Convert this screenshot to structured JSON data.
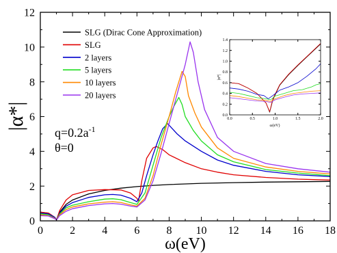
{
  "chart_data": [
    {
      "type": "line",
      "xlabel": "ω(eV)",
      "ylabel": "|α*|",
      "xlim": [
        0,
        18
      ],
      "ylim": [
        0,
        12
      ],
      "xticks": [
        0,
        2,
        4,
        6,
        8,
        10,
        12,
        14,
        16,
        18
      ],
      "yticks": [
        0,
        2,
        4,
        6,
        8,
        10,
        12
      ],
      "legend_position": "top-left",
      "annotations": [
        "q=0.2a",
        "-1",
        "θ=0"
      ],
      "series": [
        {
          "name": "SLG (Dirac Cone Approximation)",
          "color": "#000000",
          "x": [
            0,
            0.5,
            0.9,
            1.0,
            1.2,
            1.6,
            2,
            3,
            4,
            5,
            6,
            7,
            8,
            10,
            12,
            14,
            16,
            18
          ],
          "y": [
            0.5,
            0.45,
            0.2,
            0.05,
            0.5,
            0.95,
            1.2,
            1.55,
            1.75,
            1.88,
            1.97,
            2.04,
            2.09,
            2.16,
            2.2,
            2.23,
            2.25,
            2.27
          ]
        },
        {
          "name": "SLG",
          "color": "#e00000",
          "x": [
            0,
            0.5,
            0.9,
            1.0,
            1.2,
            1.6,
            2,
            3,
            4,
            5,
            5.6,
            6.0,
            6.1,
            6.3,
            6.6,
            7.0,
            7.2,
            7.6,
            8,
            9,
            10,
            11,
            12,
            14,
            16,
            18
          ],
          "y": [
            0.5,
            0.45,
            0.2,
            0.05,
            0.6,
            1.2,
            1.5,
            1.75,
            1.8,
            1.78,
            1.6,
            1.3,
            1.15,
            2.3,
            3.6,
            4.2,
            4.28,
            4.1,
            3.8,
            3.35,
            3.0,
            2.8,
            2.65,
            2.5,
            2.4,
            2.35
          ]
        },
        {
          "name": "2 layers",
          "color": "#0000cc",
          "x": [
            0,
            0.5,
            0.9,
            1.0,
            1.2,
            1.6,
            2,
            3,
            4,
            4.5,
            5,
            5.6,
            6.0,
            6.3,
            6.6,
            7.0,
            7.3,
            7.6,
            7.9,
            8.2,
            8.5,
            9,
            10,
            11,
            12,
            14,
            16,
            18
          ],
          "y": [
            0.45,
            0.4,
            0.2,
            0.05,
            0.45,
            0.85,
            1.05,
            1.35,
            1.5,
            1.52,
            1.48,
            1.3,
            1.1,
            1.6,
            2.6,
            3.8,
            4.6,
            5.3,
            5.6,
            5.3,
            5.0,
            4.6,
            4.0,
            3.5,
            3.2,
            2.85,
            2.65,
            2.55
          ]
        },
        {
          "name": "5 layers",
          "color": "#22dd22",
          "x": [
            0,
            0.5,
            0.9,
            1.0,
            1.2,
            1.6,
            2,
            3,
            4,
            4.5,
            5,
            5.6,
            6.0,
            6.5,
            7.0,
            7.5,
            8.0,
            8.3,
            8.6,
            8.8,
            9.0,
            9.5,
            10,
            11,
            12,
            14,
            16,
            18
          ],
          "y": [
            0.4,
            0.35,
            0.15,
            0.05,
            0.4,
            0.75,
            0.9,
            1.1,
            1.25,
            1.27,
            1.22,
            1.05,
            0.95,
            1.6,
            3.2,
            4.8,
            6.0,
            6.6,
            7.1,
            6.7,
            6.0,
            5.2,
            4.6,
            3.8,
            3.4,
            2.95,
            2.75,
            2.6
          ]
        },
        {
          "name": "10 layers",
          "color": "#ff8800",
          "x": [
            0,
            0.5,
            0.9,
            1.0,
            1.2,
            1.6,
            2,
            3,
            4,
            4.5,
            5,
            5.6,
            6.0,
            6.5,
            7.0,
            7.5,
            8.0,
            8.4,
            8.8,
            9.0,
            9.2,
            9.6,
            10,
            11,
            12,
            14,
            16,
            18
          ],
          "y": [
            0.35,
            0.3,
            0.15,
            0.05,
            0.35,
            0.65,
            0.8,
            0.98,
            1.08,
            1.1,
            1.06,
            0.92,
            0.85,
            1.3,
            2.6,
            4.4,
            6.0,
            7.4,
            8.6,
            8.3,
            7.2,
            6.2,
            5.4,
            4.2,
            3.6,
            3.1,
            2.85,
            2.7
          ]
        },
        {
          "name": "20 layers",
          "color": "#9933ee",
          "x": [
            0,
            0.5,
            0.9,
            1.0,
            1.2,
            1.6,
            2,
            3,
            4,
            4.5,
            5,
            5.6,
            6.0,
            6.5,
            7.0,
            7.5,
            8.0,
            8.5,
            9.0,
            9.3,
            9.5,
            9.8,
            10.2,
            11,
            12,
            14,
            16,
            18
          ],
          "y": [
            0.3,
            0.28,
            0.12,
            0.05,
            0.3,
            0.55,
            0.7,
            0.88,
            0.98,
            1.0,
            0.96,
            0.85,
            0.8,
            1.2,
            2.3,
            3.9,
            5.6,
            7.3,
            9.0,
            10.3,
            9.7,
            8.0,
            6.4,
            4.8,
            4.0,
            3.3,
            3.0,
            2.8
          ]
        }
      ]
    },
    {
      "type": "line",
      "xlabel": "ω(eV)",
      "ylabel": "|α*|",
      "xlim": [
        0,
        2.0
      ],
      "ylim": [
        0,
        1.4
      ],
      "xticks": [
        0.0,
        0.5,
        1.0,
        1.5,
        2.0
      ],
      "yticks": [
        0.0,
        0.2,
        0.4,
        0.6,
        0.8,
        1.0,
        1.2,
        1.4
      ],
      "series": [
        {
          "color": "#000000",
          "x": [
            0,
            0.2,
            0.4,
            0.6,
            0.8,
            0.88,
            0.95,
            1.1,
            1.3,
            1.5,
            1.7,
            1.9,
            2.0
          ],
          "y": [
            0.6,
            0.58,
            0.5,
            0.4,
            0.22,
            0.05,
            0.28,
            0.55,
            0.75,
            0.92,
            1.08,
            1.24,
            1.32
          ]
        },
        {
          "color": "#e00000",
          "x": [
            0,
            0.2,
            0.4,
            0.6,
            0.8,
            0.88,
            0.95,
            1.1,
            1.3,
            1.5,
            1.7,
            1.9,
            2.0
          ],
          "y": [
            0.6,
            0.58,
            0.5,
            0.4,
            0.22,
            0.06,
            0.3,
            0.56,
            0.76,
            0.93,
            1.09,
            1.25,
            1.33
          ]
        },
        {
          "color": "#0000cc",
          "x": [
            0,
            0.2,
            0.4,
            0.6,
            0.75,
            0.85,
            0.95,
            1.1,
            1.3,
            1.5,
            1.7,
            1.9,
            2.0
          ],
          "y": [
            0.5,
            0.48,
            0.44,
            0.38,
            0.36,
            0.3,
            0.36,
            0.46,
            0.52,
            0.6,
            0.72,
            0.86,
            0.95
          ]
        },
        {
          "color": "#22dd22",
          "x": [
            0,
            0.2,
            0.4,
            0.6,
            0.8,
            0.9,
            1.0,
            1.2,
            1.4,
            1.6,
            1.8,
            1.9,
            2.0
          ],
          "y": [
            0.42,
            0.4,
            0.36,
            0.32,
            0.3,
            0.28,
            0.35,
            0.4,
            0.45,
            0.47,
            0.52,
            0.56,
            0.58
          ]
        },
        {
          "color": "#ff8800",
          "x": [
            0,
            0.2,
            0.4,
            0.6,
            0.8,
            0.9,
            1.0,
            1.2,
            1.4,
            1.6,
            1.8,
            2.0
          ],
          "y": [
            0.36,
            0.34,
            0.31,
            0.28,
            0.27,
            0.25,
            0.3,
            0.36,
            0.4,
            0.42,
            0.44,
            0.45
          ]
        },
        {
          "color": "#9933ee",
          "x": [
            0,
            0.2,
            0.4,
            0.6,
            0.8,
            0.9,
            1.0,
            1.2,
            1.4,
            1.6,
            1.8,
            2.0
          ],
          "y": [
            0.32,
            0.3,
            0.28,
            0.26,
            0.25,
            0.23,
            0.28,
            0.33,
            0.37,
            0.39,
            0.4,
            0.41
          ]
        }
      ]
    }
  ]
}
